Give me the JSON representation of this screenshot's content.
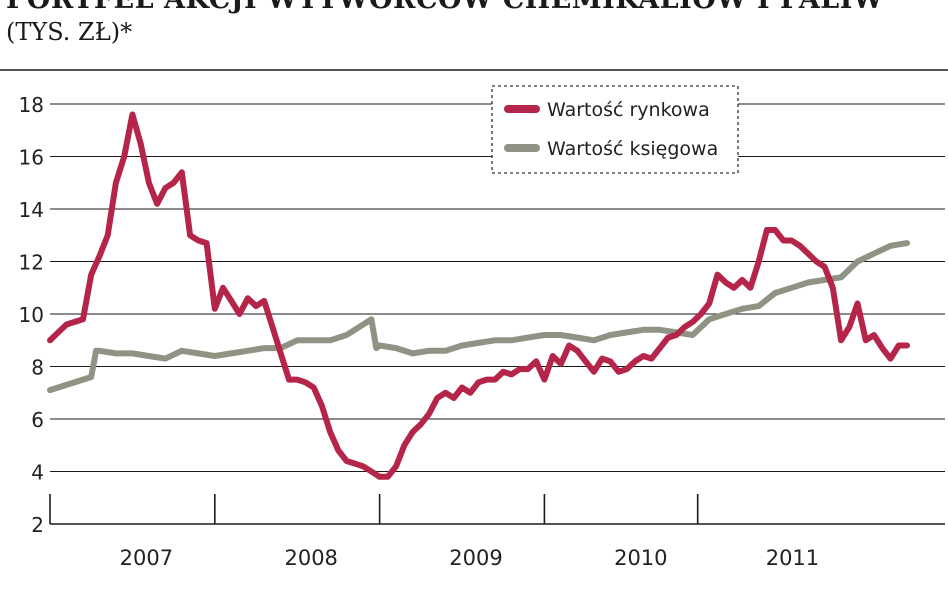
{
  "header": {
    "title": "PORTFEL AKCJI WYTWÓRCÓW CHEMIKALIÓW I PALIW",
    "subtitle": "(TYS. ZŁ)*"
  },
  "footer": {
    "note": ""
  },
  "colors": {
    "market": "#b5254a",
    "book": "#8f9383",
    "grid": "#1a1a1a",
    "text": "#222222"
  },
  "chart_data": {
    "type": "line",
    "title": "PORTFEL AKCJI WYTWÓRCÓW CHEMIKALIÓW I PALIW",
    "xlabel": "",
    "ylabel": "",
    "ylim": [
      2,
      18
    ],
    "yticks": [
      2,
      4,
      6,
      8,
      10,
      12,
      14,
      16,
      18
    ],
    "xlim": [
      2006.5,
      2011.87
    ],
    "year_labels": [
      {
        "label": "2007",
        "x": 2007.0
      },
      {
        "label": "2008",
        "x": 2008.0
      },
      {
        "label": "2009",
        "x": 2009.0
      },
      {
        "label": "2010",
        "x": 2010.0
      },
      {
        "label": "2011",
        "x": 2010.92
      }
    ],
    "year_boundaries": [
      2007.5,
      2008.5,
      2009.5,
      2010.43
    ],
    "grid": "horizontal",
    "legend_position": "top-center",
    "series": [
      {
        "name": "Wartość rynkowa",
        "x": [
          2006.5,
          2006.55,
          2006.6,
          2006.65,
          2006.7,
          2006.75,
          2006.8,
          2006.85,
          2006.9,
          2006.95,
          2007.0,
          2007.05,
          2007.1,
          2007.15,
          2007.2,
          2007.25,
          2007.3,
          2007.35,
          2007.4,
          2007.45,
          2007.5,
          2007.55,
          2007.6,
          2007.65,
          2007.7,
          2007.75,
          2007.8,
          2007.85,
          2007.9,
          2007.95,
          2008.0,
          2008.05,
          2008.1,
          2008.15,
          2008.2,
          2008.25,
          2008.3,
          2008.35,
          2008.4,
          2008.45,
          2008.5,
          2008.55,
          2008.6,
          2008.65,
          2008.7,
          2008.75,
          2008.8,
          2008.85,
          2008.9,
          2008.95,
          2009.0,
          2009.05,
          2009.1,
          2009.15,
          2009.2,
          2009.25,
          2009.3,
          2009.35,
          2009.4,
          2009.45,
          2009.5,
          2009.55,
          2009.6,
          2009.65,
          2009.7,
          2009.75,
          2009.8,
          2009.85,
          2009.9,
          2009.95,
          2010.0,
          2010.05,
          2010.1,
          2010.15,
          2010.2,
          2010.25,
          2010.3,
          2010.35,
          2010.4,
          2010.45,
          2010.5,
          2010.55,
          2010.6,
          2010.65,
          2010.7,
          2010.75,
          2010.8,
          2010.85,
          2010.9,
          2010.95,
          2011.0,
          2011.05,
          2011.1,
          2011.15,
          2011.2,
          2011.25,
          2011.3,
          2011.35,
          2011.4,
          2011.45,
          2011.5,
          2011.55,
          2011.6,
          2011.65,
          2011.7
        ],
        "values": [
          9.0,
          9.3,
          9.6,
          9.7,
          9.8,
          11.5,
          12.2,
          13.0,
          15.0,
          16.0,
          17.6,
          16.5,
          15.0,
          14.2,
          14.8,
          15.0,
          15.4,
          13.0,
          12.8,
          12.7,
          10.2,
          11.0,
          10.5,
          10.0,
          10.6,
          10.3,
          10.5,
          9.5,
          8.5,
          7.5,
          7.5,
          7.4,
          7.2,
          6.5,
          5.5,
          4.8,
          4.4,
          4.3,
          4.2,
          4.0,
          3.8,
          3.8,
          4.2,
          5.0,
          5.5,
          5.8,
          6.2,
          6.8,
          7.0,
          6.8,
          7.2,
          7.0,
          7.4,
          7.5,
          7.5,
          7.8,
          7.7,
          7.9,
          7.9,
          8.2,
          7.5,
          8.4,
          8.1,
          8.8,
          8.6,
          8.2,
          7.8,
          8.3,
          8.2,
          7.8,
          7.9,
          8.2,
          8.4,
          8.3,
          8.7,
          9.1,
          9.2,
          9.5,
          9.7,
          10.0,
          10.4,
          11.5,
          11.2,
          11.0,
          11.3,
          11.0,
          12.0,
          13.2,
          13.2,
          12.8,
          12.8,
          12.6,
          12.3,
          12.0,
          11.8,
          11.0,
          9.0,
          9.5,
          10.4,
          9.0,
          9.2,
          8.7,
          8.3,
          8.8,
          8.8
        ],
        "color": "#b5254a"
      },
      {
        "name": "Wartość księgowa",
        "x": [
          2006.5,
          2006.6,
          2006.7,
          2006.75,
          2006.78,
          2006.8,
          2006.9,
          2007.0,
          2007.1,
          2007.2,
          2007.3,
          2007.4,
          2007.5,
          2007.6,
          2007.7,
          2007.8,
          2007.9,
          2008.0,
          2008.1,
          2008.2,
          2008.3,
          2008.4,
          2008.45,
          2008.48,
          2008.5,
          2008.6,
          2008.7,
          2008.8,
          2008.9,
          2009.0,
          2009.1,
          2009.2,
          2009.3,
          2009.4,
          2009.5,
          2009.6,
          2009.7,
          2009.8,
          2009.9,
          2010.0,
          2010.1,
          2010.2,
          2010.3,
          2010.4,
          2010.45,
          2010.5,
          2010.6,
          2010.7,
          2010.8,
          2010.9,
          2011.0,
          2011.1,
          2011.2,
          2011.3,
          2011.4,
          2011.5,
          2011.6,
          2011.7
        ],
        "values": [
          7.1,
          7.3,
          7.5,
          7.6,
          8.6,
          8.6,
          8.5,
          8.5,
          8.4,
          8.3,
          8.6,
          8.5,
          8.4,
          8.5,
          8.6,
          8.7,
          8.7,
          9.0,
          9.0,
          9.0,
          9.2,
          9.6,
          9.8,
          8.7,
          8.8,
          8.7,
          8.5,
          8.6,
          8.6,
          8.8,
          8.9,
          9.0,
          9.0,
          9.1,
          9.2,
          9.2,
          9.1,
          9.0,
          9.2,
          9.3,
          9.4,
          9.4,
          9.3,
          9.2,
          9.5,
          9.8,
          10.0,
          10.2,
          10.3,
          10.8,
          11.0,
          11.2,
          11.3,
          11.4,
          12.0,
          12.3,
          12.6,
          12.7
        ],
        "color": "#8f9383"
      }
    ]
  }
}
